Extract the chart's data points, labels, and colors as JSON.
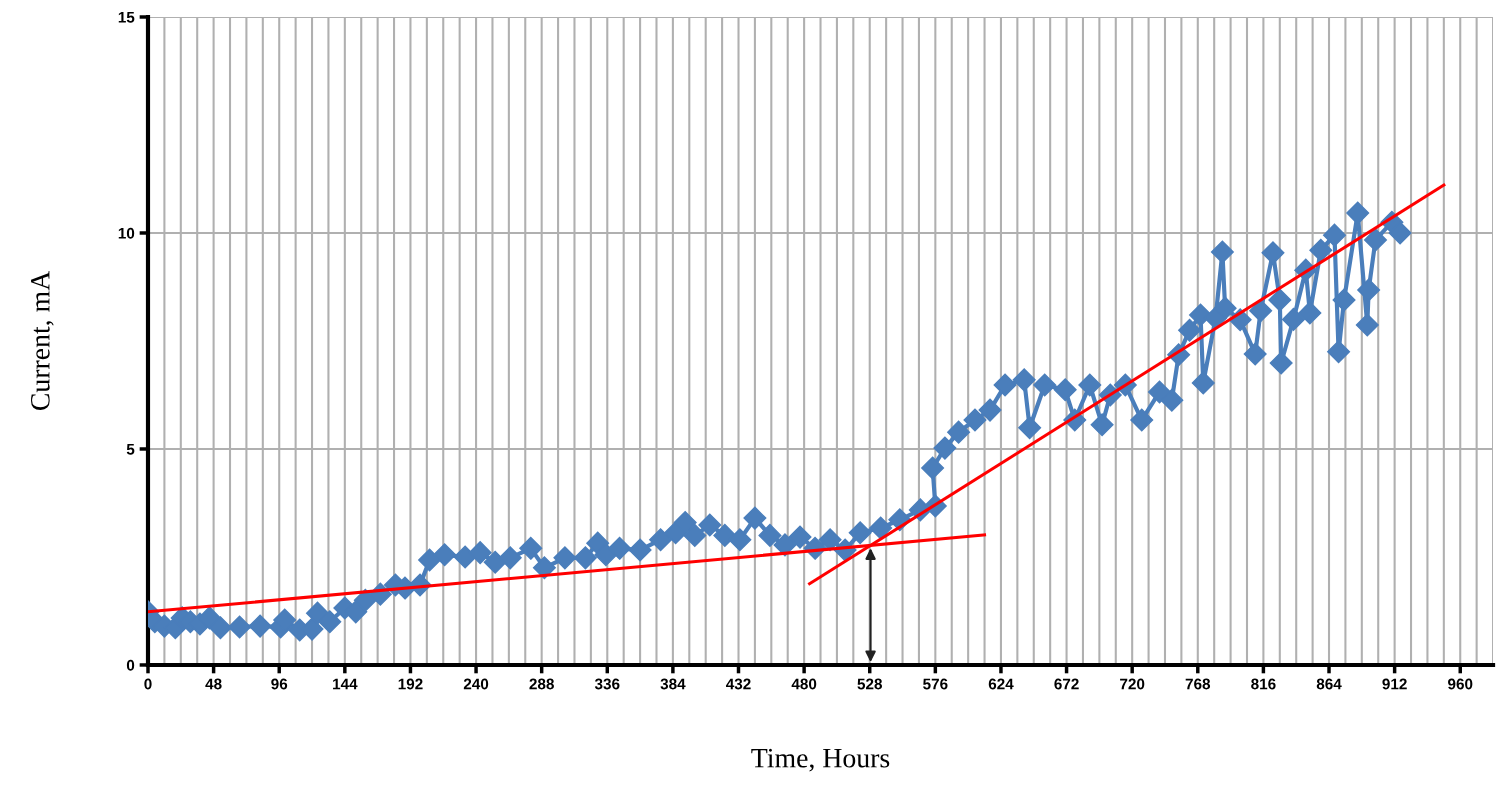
{
  "chart_data": {
    "type": "line",
    "xlabel": "Time, Hours",
    "ylabel": "Current, mA",
    "xlim": [
      0,
      984
    ],
    "ylim": [
      0,
      15
    ],
    "xticks": [
      0,
      {
        "value": 12,
        "label": null
      },
      {
        "value": 24,
        "label": null
      },
      {
        "value": 36,
        "label": null
      },
      48,
      {
        "value": 60,
        "label": null
      },
      {
        "value": 72,
        "label": null
      },
      {
        "value": 84,
        "label": null
      },
      96,
      {
        "value": 108,
        "label": null
      },
      {
        "value": 120,
        "label": null
      },
      {
        "value": 132,
        "label": null
      },
      144,
      {
        "value": 156,
        "label": null
      },
      {
        "value": 168,
        "label": null
      },
      {
        "value": 180,
        "label": null
      },
      192,
      {
        "value": 204,
        "label": null
      },
      {
        "value": 216,
        "label": null
      },
      {
        "value": 228,
        "label": null
      },
      240,
      {
        "value": 252,
        "label": null
      },
      {
        "value": 264,
        "label": null
      },
      {
        "value": 276,
        "label": null
      },
      288,
      {
        "value": 300,
        "label": null
      },
      {
        "value": 312,
        "label": null
      },
      {
        "value": 324,
        "label": null
      },
      336,
      {
        "value": 348,
        "label": null
      },
      {
        "value": 360,
        "label": null
      },
      {
        "value": 372,
        "label": null
      },
      384,
      {
        "value": 396,
        "label": null
      },
      {
        "value": 408,
        "label": null
      },
      {
        "value": 420,
        "label": null
      },
      432,
      {
        "value": 444,
        "label": null
      },
      {
        "value": 456,
        "label": null
      },
      {
        "value": 468,
        "label": null
      },
      480,
      {
        "value": 492,
        "label": null
      },
      {
        "value": 504,
        "label": null
      },
      {
        "value": 516,
        "label": null
      },
      528,
      {
        "value": 540,
        "label": null
      },
      {
        "value": 552,
        "label": null
      },
      {
        "value": 564,
        "label": null
      },
      576,
      {
        "value": 588,
        "label": null
      },
      {
        "value": 600,
        "label": null
      },
      {
        "value": 612,
        "label": null
      },
      624,
      {
        "value": 636,
        "label": null
      },
      {
        "value": 648,
        "label": null
      },
      {
        "value": 660,
        "label": null
      },
      672,
      {
        "value": 684,
        "label": null
      },
      {
        "value": 696,
        "label": null
      },
      {
        "value": 708,
        "label": null
      },
      720,
      {
        "value": 732,
        "label": null
      },
      {
        "value": 744,
        "label": null
      },
      {
        "value": 756,
        "label": null
      },
      768,
      {
        "value": 780,
        "label": null
      },
      {
        "value": 792,
        "label": null
      },
      {
        "value": 804,
        "label": null
      },
      816,
      {
        "value": 828,
        "label": null
      },
      {
        "value": 840,
        "label": null
      },
      {
        "value": 852,
        "label": null
      },
      864,
      {
        "value": 876,
        "label": null
      },
      {
        "value": 888,
        "label": null
      },
      {
        "value": 900,
        "label": null
      },
      912,
      {
        "value": 924,
        "label": null
      },
      {
        "value": 936,
        "label": null
      },
      {
        "value": 948,
        "label": null
      },
      960,
      {
        "value": 972,
        "label": null
      },
      {
        "value": 984,
        "label": null
      }
    ],
    "yticks": [
      0,
      5,
      10,
      15
    ],
    "grid": true,
    "series": [
      {
        "color": "#4a7ebb",
        "marker": "diamond",
        "x": [
          0,
          5,
          12,
          20,
          25,
          31,
          38,
          45,
          53,
          67,
          82,
          97,
          100,
          111,
          120,
          124,
          133,
          144,
          152,
          159,
          170,
          181,
          188,
          199,
          206,
          217,
          232,
          243,
          254,
          265,
          280,
          290,
          305,
          320,
          329,
          335,
          345,
          360,
          375,
          386,
          393,
          400,
          411,
          422,
          433,
          444,
          455,
          466,
          477,
          488,
          499,
          510,
          521,
          536,
          550,
          565,
          576,
          574,
          583,
          593,
          605,
          616,
          627,
          641,
          645,
          656,
          671,
          678,
          689,
          698,
          704,
          715,
          727,
          740,
          749,
          754,
          762,
          770,
          772,
          781,
          786,
          788,
          799,
          810,
          814,
          823,
          828,
          829,
          838,
          847,
          850,
          858,
          868,
          871,
          875,
          885,
          892,
          893,
          898,
          910,
          916
        ],
        "values": [
          1.23,
          1.0,
          0.9,
          0.86,
          1.09,
          1.0,
          0.95,
          1.09,
          0.86,
          0.88,
          0.9,
          0.88,
          1.04,
          0.81,
          0.83,
          1.2,
          1.0,
          1.32,
          1.23,
          1.5,
          1.64,
          1.85,
          1.78,
          1.85,
          2.43,
          2.55,
          2.5,
          2.6,
          2.38,
          2.48,
          2.7,
          2.25,
          2.48,
          2.48,
          2.82,
          2.55,
          2.7,
          2.66,
          2.9,
          3.06,
          3.3,
          3.0,
          3.24,
          3.0,
          2.9,
          3.4,
          3.0,
          2.78,
          2.96,
          2.7,
          2.9,
          2.66,
          3.06,
          3.17,
          3.36,
          3.59,
          3.68,
          4.56,
          5.02,
          5.39,
          5.67,
          5.9,
          6.48,
          6.6,
          5.49,
          6.48,
          6.37,
          5.67,
          6.48,
          5.56,
          6.25,
          6.48,
          5.67,
          6.32,
          6.13,
          7.18,
          7.75,
          8.1,
          6.53,
          8.03,
          9.56,
          8.26,
          7.99,
          7.2,
          8.2,
          9.54,
          8.45,
          6.99,
          8.0,
          9.14,
          8.15,
          9.6,
          9.95,
          7.25,
          8.45,
          10.46,
          7.87,
          8.68,
          9.84,
          10.25,
          10.0
        ]
      },
      {
        "color": "#ff0000",
        "marker": "none",
        "x": [
          0,
          612
        ],
        "values": [
          1.23,
          3.01
        ]
      },
      {
        "color": "#ff0000",
        "marker": "none",
        "x": [
          484,
          948
        ],
        "values": [
          1.88,
          11.11
        ]
      }
    ]
  }
}
